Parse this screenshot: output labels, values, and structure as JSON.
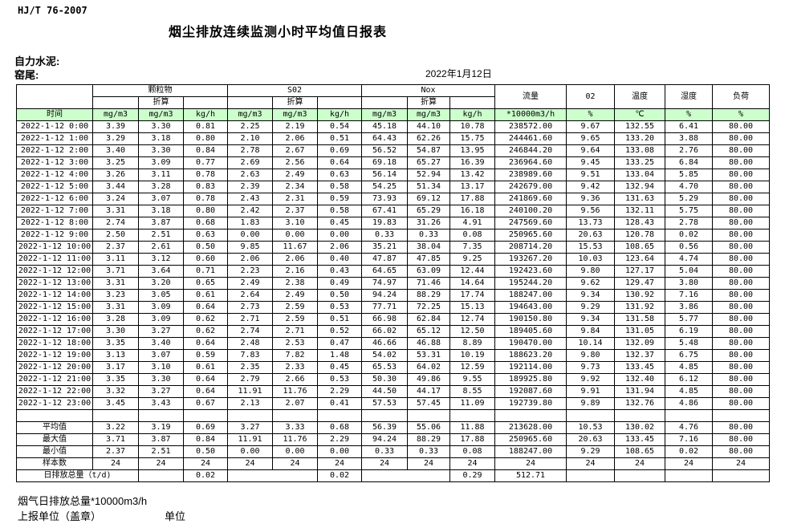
{
  "page": {
    "standard": "HJ/T  76-2007",
    "title": "烟尘排放连续监测小时平均值日报表",
    "company": "自力水泥:",
    "location": "窑尾:",
    "date": "2022年1月12日",
    "footer_note": "烟气日排放总量*10000m3/h",
    "footer_report_unit": "上报单位（盖章）",
    "footer_unit": "单位"
  },
  "colors": {
    "header_green": "#ccffcc",
    "border": "#000000",
    "background": "#ffffff"
  },
  "table": {
    "time_header": "时间",
    "group_pm": "颗粒物",
    "group_so2": "S02",
    "group_nox": "Nox",
    "converted_label": "折算",
    "col_flow": "流量",
    "col_o2": "02",
    "col_temp": "温度",
    "col_humidity": "湿度",
    "col_load": "负荷",
    "unit_mgm3": "mg/m3",
    "unit_kgh": "kg/h",
    "unit_flow": "*10000m3/h",
    "unit_percent": "%",
    "unit_celsius": "℃",
    "rows": [
      [
        "2022-1-12 0:00",
        "3.39",
        "3.30",
        "0.81",
        "2.25",
        "2.19",
        "0.54",
        "45.18",
        "44.10",
        "10.78",
        "238572.00",
        "9.67",
        "132.55",
        "6.41",
        "80.00"
      ],
      [
        "2022-1-12 1:00",
        "3.29",
        "3.18",
        "0.80",
        "2.10",
        "2.06",
        "0.51",
        "64.43",
        "62.26",
        "15.75",
        "244461.60",
        "9.65",
        "133.20",
        "3.88",
        "80.00"
      ],
      [
        "2022-1-12 2:00",
        "3.40",
        "3.30",
        "0.84",
        "2.78",
        "2.67",
        "0.69",
        "56.52",
        "54.87",
        "13.95",
        "246844.20",
        "9.64",
        "133.08",
        "2.76",
        "80.00"
      ],
      [
        "2022-1-12 3:00",
        "3.25",
        "3.09",
        "0.77",
        "2.69",
        "2.56",
        "0.64",
        "69.18",
        "65.27",
        "16.39",
        "236964.60",
        "9.45",
        "133.25",
        "6.84",
        "80.00"
      ],
      [
        "2022-1-12 4:00",
        "3.26",
        "3.11",
        "0.78",
        "2.63",
        "2.49",
        "0.63",
        "56.14",
        "52.94",
        "13.42",
        "238989.60",
        "9.51",
        "133.04",
        "5.85",
        "80.00"
      ],
      [
        "2022-1-12 5:00",
        "3.44",
        "3.28",
        "0.83",
        "2.39",
        "2.34",
        "0.58",
        "54.25",
        "51.34",
        "13.17",
        "242679.00",
        "9.42",
        "132.94",
        "4.70",
        "80.00"
      ],
      [
        "2022-1-12 6:00",
        "3.24",
        "3.07",
        "0.78",
        "2.43",
        "2.31",
        "0.59",
        "73.93",
        "69.12",
        "17.88",
        "241869.60",
        "9.36",
        "131.63",
        "5.29",
        "80.00"
      ],
      [
        "2022-1-12 7:00",
        "3.31",
        "3.18",
        "0.80",
        "2.42",
        "2.37",
        "0.58",
        "67.41",
        "65.29",
        "16.18",
        "240100.20",
        "9.56",
        "132.11",
        "5.75",
        "80.00"
      ],
      [
        "2022-1-12 8:00",
        "2.74",
        "3.87",
        "0.68",
        "1.83",
        "3.10",
        "0.45",
        "19.83",
        "31.26",
        "4.91",
        "247569.60",
        "13.73",
        "128.43",
        "2.78",
        "80.00"
      ],
      [
        "2022-1-12 9:00",
        "2.50",
        "2.51",
        "0.63",
        "0.00",
        "0.00",
        "0.00",
        "0.33",
        "0.33",
        "0.08",
        "250965.60",
        "20.63",
        "120.78",
        "0.02",
        "80.00"
      ],
      [
        "2022-1-12 10:00",
        "2.37",
        "2.61",
        "0.50",
        "9.85",
        "11.67",
        "2.06",
        "35.21",
        "38.04",
        "7.35",
        "208714.20",
        "15.53",
        "108.65",
        "0.56",
        "80.00"
      ],
      [
        "2022-1-12 11:00",
        "3.11",
        "3.12",
        "0.60",
        "2.06",
        "2.06",
        "0.40",
        "47.87",
        "47.85",
        "9.25",
        "193267.20",
        "10.03",
        "123.64",
        "4.74",
        "80.00"
      ],
      [
        "2022-1-12 12:00",
        "3.71",
        "3.64",
        "0.71",
        "2.23",
        "2.16",
        "0.43",
        "64.65",
        "63.09",
        "12.44",
        "192423.60",
        "9.80",
        "127.17",
        "5.04",
        "80.00"
      ],
      [
        "2022-1-12 13:00",
        "3.31",
        "3.20",
        "0.65",
        "2.49",
        "2.38",
        "0.49",
        "74.97",
        "71.46",
        "14.64",
        "195244.20",
        "9.62",
        "129.47",
        "3.80",
        "80.00"
      ],
      [
        "2022-1-12 14:00",
        "3.23",
        "3.05",
        "0.61",
        "2.64",
        "2.49",
        "0.50",
        "94.24",
        "88.29",
        "17.74",
        "188247.00",
        "9.34",
        "130.92",
        "7.16",
        "80.00"
      ],
      [
        "2022-1-12 15:00",
        "3.31",
        "3.09",
        "0.64",
        "2.73",
        "2.59",
        "0.53",
        "77.71",
        "72.25",
        "15.13",
        "194643.00",
        "9.29",
        "131.92",
        "3.86",
        "80.00"
      ],
      [
        "2022-1-12 16:00",
        "3.28",
        "3.09",
        "0.62",
        "2.71",
        "2.59",
        "0.51",
        "66.98",
        "62.84",
        "12.74",
        "190150.80",
        "9.34",
        "131.58",
        "5.77",
        "80.00"
      ],
      [
        "2022-1-12 17:00",
        "3.30",
        "3.27",
        "0.62",
        "2.74",
        "2.71",
        "0.52",
        "66.02",
        "65.12",
        "12.50",
        "189405.60",
        "9.84",
        "131.05",
        "6.19",
        "80.00"
      ],
      [
        "2022-1-12 18:00",
        "3.35",
        "3.40",
        "0.64",
        "2.48",
        "2.53",
        "0.47",
        "46.66",
        "46.88",
        "8.89",
        "190470.00",
        "10.14",
        "132.09",
        "5.48",
        "80.00"
      ],
      [
        "2022-1-12 19:00",
        "3.13",
        "3.07",
        "0.59",
        "7.83",
        "7.82",
        "1.48",
        "54.02",
        "53.31",
        "10.19",
        "188623.20",
        "9.80",
        "132.37",
        "6.75",
        "80.00"
      ],
      [
        "2022-1-12 20:00",
        "3.17",
        "3.10",
        "0.61",
        "2.35",
        "2.33",
        "0.45",
        "65.53",
        "64.02",
        "12.59",
        "192114.00",
        "9.73",
        "133.45",
        "4.85",
        "80.00"
      ],
      [
        "2022-1-12 21:00",
        "3.35",
        "3.30",
        "0.64",
        "2.79",
        "2.66",
        "0.53",
        "50.30",
        "49.86",
        "9.55",
        "189925.80",
        "9.92",
        "132.40",
        "6.12",
        "80.00"
      ],
      [
        "2022-1-12 22:00",
        "3.32",
        "3.27",
        "0.64",
        "11.91",
        "11.76",
        "2.29",
        "44.50",
        "44.17",
        "8.55",
        "192087.60",
        "9.91",
        "131.94",
        "4.85",
        "80.00"
      ],
      [
        "2022-1-12 23:00",
        "3.45",
        "3.43",
        "0.67",
        "2.13",
        "2.07",
        "0.41",
        "57.53",
        "57.45",
        "11.09",
        "192739.80",
        "9.89",
        "132.76",
        "4.86",
        "80.00"
      ]
    ],
    "summary": [
      {
        "label": "平均值",
        "values": [
          "3.22",
          "3.19",
          "0.69",
          "3.27",
          "3.33",
          "0.68",
          "56.39",
          "55.06",
          "11.88",
          "213628.00",
          "10.53",
          "130.02",
          "4.76",
          "80.00"
        ]
      },
      {
        "label": "最大值",
        "values": [
          "3.71",
          "3.87",
          "0.84",
          "11.91",
          "11.76",
          "2.29",
          "94.24",
          "88.29",
          "17.88",
          "250965.60",
          "20.63",
          "133.45",
          "7.16",
          "80.00"
        ]
      },
      {
        "label": "最小值",
        "values": [
          "2.37",
          "2.51",
          "0.50",
          "0.00",
          "0.00",
          "0.00",
          "0.33",
          "0.33",
          "0.08",
          "188247.00",
          "9.29",
          "108.65",
          "0.02",
          "80.00"
        ]
      },
      {
        "label": "样本数",
        "values": [
          "24",
          "24",
          "24",
          "24",
          "24",
          "24",
          "24",
          "24",
          "24",
          "24",
          "24",
          "24",
          "24",
          "24"
        ]
      }
    ],
    "daily_total": {
      "label": "日排放总量（t/d)",
      "cells": [
        {
          "span": 1,
          "v": ""
        },
        {
          "span": 1,
          "v": "0.02"
        },
        {
          "span": 2,
          "v": ""
        },
        {
          "span": 1,
          "v": "0.02"
        },
        {
          "span": 2,
          "v": ""
        },
        {
          "span": 1,
          "v": "0.29"
        },
        {
          "span": 1,
          "v": "512.71"
        },
        {
          "span": 1,
          "v": ""
        },
        {
          "span": 1,
          "v": ""
        },
        {
          "span": 1,
          "v": ""
        },
        {
          "span": 1,
          "v": ""
        }
      ]
    }
  }
}
